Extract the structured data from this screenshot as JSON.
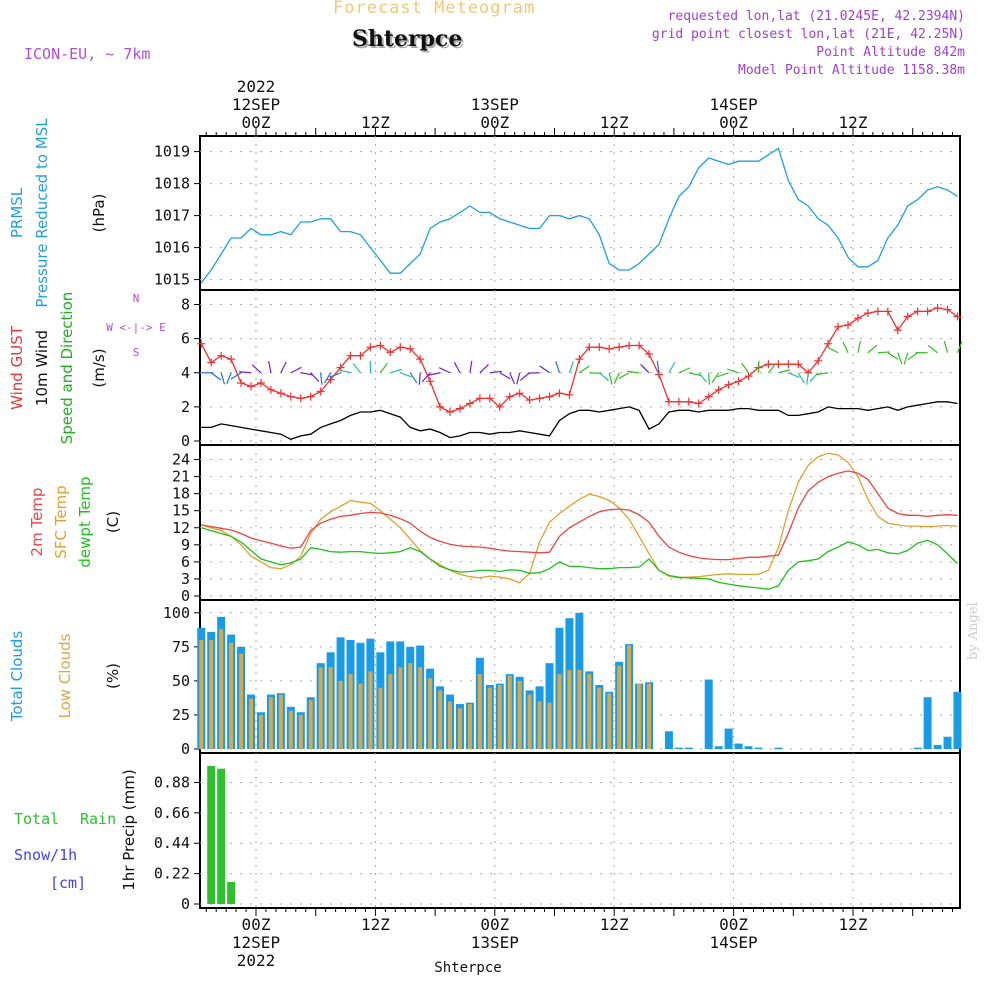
{
  "header": {
    "title": "Forecast Meteogram",
    "location": "Shterpce",
    "model": "ICON-EU, ~ 7km",
    "requested": "requested lon,lat (21.0245E, 42.2394N)",
    "grid_point": "grid point closest lon,lat (21E, 42.25N)",
    "point_altitude": "Point Altitude 842m",
    "model_point_altitude": "Model Point Altitude 1158.38m"
  },
  "footer_location": "Shterpce",
  "credit": "by Angel",
  "colors": {
    "pressure": "#1ea0e0",
    "gust": "#ee3333",
    "wind": "#000000",
    "temp2m": "#ee4444",
    "sfc_temp": "#e0a030",
    "dewpt": "#20c020",
    "total_clouds": "#1a9be6",
    "low_clouds": "#d9a84a",
    "rain": "#2ec02e",
    "snow": "#4040ff",
    "grid": "#aaaaaa"
  },
  "time_axis": {
    "top_year": "2022",
    "labels": [
      {
        "hour": 0,
        "lines": [
          "12SEP",
          "00Z"
        ]
      },
      {
        "hour": 12,
        "lines": [
          "12Z"
        ]
      },
      {
        "hour": 24,
        "lines": [
          "13SEP",
          "00Z"
        ]
      },
      {
        "hour": 36,
        "lines": [
          "12Z"
        ]
      },
      {
        "hour": 48,
        "lines": [
          "14SEP",
          "00Z"
        ]
      },
      {
        "hour": 60,
        "lines": [
          "12Z"
        ]
      }
    ],
    "bottom_labels": [
      {
        "hour": 0,
        "lines": [
          "00Z",
          "12SEP",
          "2022"
        ]
      },
      {
        "hour": 12,
        "lines": [
          "12Z"
        ]
      },
      {
        "hour": 24,
        "lines": [
          "00Z",
          "13SEP"
        ]
      },
      {
        "hour": 36,
        "lines": [
          "12Z"
        ]
      },
      {
        "hour": 48,
        "lines": [
          "00Z",
          "14SEP"
        ]
      },
      {
        "hour": 60,
        "lines": [
          "12Z"
        ]
      }
    ]
  },
  "panel_labels": {
    "pressure": {
      "a": "PRMSL",
      "b": "Pressure Reduced to MSL",
      "unit": "(hPa)"
    },
    "wind": {
      "a": "Wind GUST",
      "b": "10m Wind",
      "c": "Speed and Direction",
      "unit": "(m/s)",
      "compass_ns": "N",
      "compass_we": "W <-|-> E",
      "compass_s": "S"
    },
    "temp": {
      "a": "2m Temp",
      "b": "SFC Temp",
      "c": "dewpt Temp",
      "unit": "(C)"
    },
    "clouds": {
      "a": "Total Clouds",
      "b": "Low Clouds",
      "unit": "(%)"
    },
    "precip": {
      "a": "Total",
      "a2": "Rain",
      "b": "Snow/1h",
      "c": "[cm]",
      "unit": "1hr Precip (mm)"
    }
  },
  "chart_data": [
    {
      "type": "line",
      "name": "pressure",
      "x_unit": "hours from 12SEP 00Z",
      "ylim": [
        1014.8,
        1019.3
      ],
      "yticks": [
        1015,
        1016,
        1017,
        1018,
        1019
      ],
      "x": [
        -5.5,
        -4.5,
        -3.5,
        -2.5,
        -1.5,
        -0.5,
        0.5,
        1.5,
        2.5,
        3.5,
        4.5,
        5.5,
        6.5,
        7.5,
        8.5,
        9.5,
        10.5,
        11.5,
        12.5,
        13.5,
        14.5,
        15.5,
        16.5,
        17.5,
        18.5,
        19.5,
        20.5,
        21.5,
        22.5,
        23.5,
        24.5,
        25.5,
        26.5,
        27.5,
        28.5,
        29.5,
        30.5,
        31.5,
        32.5,
        33.5,
        34.5,
        35.5,
        36.5,
        37.5,
        38.5,
        39.5,
        40.5,
        41.5,
        42.5,
        43.5,
        44.5,
        45.5,
        46.5,
        47.5,
        48.5,
        49.5,
        50.5,
        51.5,
        52.5,
        53.5,
        54.5,
        55.5,
        56.5,
        57.5,
        58.5,
        59.5,
        60.5,
        61.5,
        62.5,
        63.5,
        64.5,
        65.5,
        66.5,
        67.5,
        68.5,
        69.5,
        70.5
      ],
      "values": [
        1014.9,
        1015.3,
        1015.8,
        1016.3,
        1016.3,
        1016.6,
        1016.4,
        1016.4,
        1016.5,
        1016.4,
        1016.8,
        1016.8,
        1016.9,
        1016.9,
        1016.5,
        1016.5,
        1016.4,
        1016.0,
        1015.6,
        1015.2,
        1015.2,
        1015.5,
        1015.8,
        1016.6,
        1016.8,
        1016.9,
        1017.1,
        1017.3,
        1017.1,
        1017.1,
        1016.9,
        1016.8,
        1016.7,
        1016.6,
        1016.6,
        1017.0,
        1017.0,
        1016.9,
        1017.0,
        1016.9,
        1016.4,
        1015.5,
        1015.3,
        1015.3,
        1015.5,
        1015.8,
        1016.1,
        1016.9,
        1017.6,
        1017.9,
        1018.5,
        1018.8,
        1018.7,
        1018.6,
        1018.7,
        1018.7,
        1018.7,
        1018.9,
        1019.1,
        1018.1,
        1017.5,
        1017.3,
        1016.9,
        1016.7,
        1016.3,
        1015.7,
        1015.4,
        1015.4,
        1015.6,
        1016.3,
        1016.7,
        1017.3,
        1017.5,
        1017.8,
        1017.9,
        1017.8,
        1017.6
      ]
    },
    {
      "type": "line",
      "name": "wind",
      "x_unit": "hours from 12SEP 00Z",
      "ylim": [
        0,
        8.5
      ],
      "yticks": [
        0,
        2,
        4,
        6,
        8
      ],
      "x": [
        -5.5,
        -4.5,
        -3.5,
        -2.5,
        -1.5,
        -0.5,
        0.5,
        1.5,
        2.5,
        3.5,
        4.5,
        5.5,
        6.5,
        7.5,
        8.5,
        9.5,
        10.5,
        11.5,
        12.5,
        13.5,
        14.5,
        15.5,
        16.5,
        17.5,
        18.5,
        19.5,
        20.5,
        21.5,
        22.5,
        23.5,
        24.5,
        25.5,
        26.5,
        27.5,
        28.5,
        29.5,
        30.5,
        31.5,
        32.5,
        33.5,
        34.5,
        35.5,
        36.5,
        37.5,
        38.5,
        39.5,
        40.5,
        41.5,
        42.5,
        43.5,
        44.5,
        45.5,
        46.5,
        47.5,
        48.5,
        49.5,
        50.5,
        51.5,
        52.5,
        53.5,
        54.5,
        55.5,
        56.5,
        57.5,
        58.5,
        59.5,
        60.5,
        61.5,
        62.5,
        63.5,
        64.5,
        65.5,
        66.5,
        67.5,
        68.5,
        69.5,
        70.5
      ],
      "gust": [
        5.7,
        4.6,
        5.0,
        4.8,
        3.4,
        3.2,
        3.4,
        3.0,
        2.8,
        2.6,
        2.5,
        2.6,
        2.9,
        3.6,
        4.3,
        5.0,
        5.0,
        5.5,
        5.6,
        5.2,
        5.5,
        5.4,
        4.8,
        3.5,
        2.0,
        1.7,
        1.9,
        2.2,
        2.5,
        2.5,
        2.0,
        2.6,
        2.8,
        2.4,
        2.5,
        2.6,
        2.8,
        2.7,
        4.8,
        5.5,
        5.5,
        5.4,
        5.5,
        5.6,
        5.6,
        5.1,
        3.9,
        2.3,
        2.3,
        2.3,
        2.2,
        2.6,
        3.0,
        3.3,
        3.5,
        3.8,
        4.3,
        4.5,
        4.5,
        4.5,
        4.5,
        4.0,
        4.7,
        5.7,
        6.7,
        6.8,
        7.2,
        7.5,
        7.6,
        7.6,
        6.5,
        7.3,
        7.6,
        7.6,
        7.8,
        7.7,
        7.3
      ],
      "wind": [
        0.8,
        0.8,
        1.0,
        0.9,
        0.8,
        0.7,
        0.6,
        0.5,
        0.4,
        0.1,
        0.3,
        0.4,
        0.8,
        1.0,
        1.2,
        1.5,
        1.7,
        1.7,
        1.8,
        1.6,
        1.4,
        0.8,
        0.6,
        0.7,
        0.5,
        0.2,
        0.3,
        0.5,
        0.5,
        0.4,
        0.5,
        0.5,
        0.6,
        0.5,
        0.4,
        0.3,
        1.2,
        1.6,
        1.8,
        1.8,
        1.7,
        1.8,
        1.9,
        2.0,
        1.8,
        0.7,
        1.0,
        1.7,
        1.8,
        1.8,
        1.7,
        1.8,
        1.8,
        1.8,
        1.9,
        1.9,
        1.8,
        1.8,
        1.8,
        1.5,
        1.5,
        1.6,
        1.7,
        2.0,
        1.9,
        1.9,
        1.9,
        1.8,
        1.9,
        2.0,
        1.8,
        2.0,
        2.1,
        2.2,
        2.3,
        2.3,
        2.2
      ],
      "compass_labels": [
        "N",
        "W <-|-> E",
        "S"
      ]
    },
    {
      "type": "line",
      "name": "temperature",
      "x_unit": "hours from 12SEP 00Z",
      "ylim": [
        0,
        25.5
      ],
      "yticks": [
        0,
        3,
        6,
        9,
        12,
        15,
        18,
        21,
        24
      ],
      "x": [
        -5.5,
        -4.5,
        -3.5,
        -2.5,
        -1.5,
        -0.5,
        0.5,
        1.5,
        2.5,
        3.5,
        4.5,
        5.5,
        6.5,
        7.5,
        8.5,
        9.5,
        10.5,
        11.5,
        12.5,
        13.5,
        14.5,
        15.5,
        16.5,
        17.5,
        18.5,
        19.5,
        20.5,
        21.5,
        22.5,
        23.5,
        24.5,
        25.5,
        26.5,
        27.5,
        28.5,
        29.5,
        30.5,
        31.5,
        32.5,
        33.5,
        34.5,
        35.5,
        36.5,
        37.5,
        38.5,
        39.5,
        40.5,
        41.5,
        42.5,
        43.5,
        44.5,
        45.5,
        46.5,
        47.5,
        48.5,
        49.5,
        50.5,
        51.5,
        52.5,
        53.5,
        54.5,
        55.5,
        56.5,
        57.5,
        58.5,
        59.5,
        60.5,
        61.5,
        62.5,
        63.5,
        64.5,
        65.5,
        66.5,
        67.5,
        68.5,
        69.5,
        70.5
      ],
      "temp2m": [
        12.5,
        12.2,
        11.9,
        11.6,
        11.0,
        10.2,
        9.7,
        9.3,
        8.8,
        8.4,
        8.6,
        11.5,
        12.8,
        13.5,
        14.0,
        14.2,
        14.5,
        14.7,
        14.6,
        14.2,
        13.6,
        12.8,
        11.4,
        10.3,
        9.6,
        9.1,
        8.8,
        8.7,
        8.6,
        8.4,
        8.1,
        7.9,
        7.8,
        7.7,
        7.6,
        7.7,
        10.5,
        12.0,
        13.0,
        14.0,
        14.8,
        15.2,
        15.3,
        15.1,
        14.3,
        13.0,
        10.5,
        8.6,
        7.7,
        7.1,
        6.7,
        6.5,
        6.4,
        6.4,
        6.6,
        6.8,
        6.8,
        7.0,
        7.2,
        11.0,
        15.5,
        18.5,
        20.0,
        21.0,
        21.6,
        22.0,
        21.6,
        20.5,
        18.0,
        15.5,
        14.5,
        14.2,
        14.2,
        14.0,
        14.2,
        14.3,
        14.2
      ],
      "sfc": [
        12.5,
        12.0,
        11.5,
        10.5,
        9.0,
        7.0,
        6.0,
        5.0,
        4.8,
        5.5,
        7.0,
        11.0,
        13.5,
        14.8,
        15.8,
        16.8,
        16.5,
        16.3,
        15.0,
        13.5,
        12.0,
        10.0,
        8.0,
        6.5,
        5.5,
        4.5,
        3.8,
        3.4,
        3.2,
        3.5,
        3.3,
        3.0,
        2.3,
        4.0,
        9.5,
        13.0,
        14.5,
        15.8,
        17.0,
        17.9,
        17.5,
        16.8,
        15.5,
        13.5,
        10.5,
        7.5,
        4.5,
        3.5,
        3.2,
        3.3,
        3.4,
        3.6,
        3.8,
        3.9,
        3.8,
        3.8,
        3.8,
        4.5,
        8.5,
        15.0,
        20.0,
        23.0,
        24.5,
        25.1,
        24.8,
        23.5,
        21.0,
        17.0,
        14.0,
        12.8,
        12.5,
        12.3,
        12.3,
        12.2,
        12.3,
        12.4,
        12.3
      ],
      "dewpt": [
        12.0,
        11.5,
        11.0,
        10.5,
        9.5,
        8.0,
        6.5,
        6.0,
        5.5,
        5.8,
        6.5,
        8.5,
        8.2,
        7.8,
        7.7,
        7.8,
        7.8,
        7.6,
        7.5,
        7.6,
        7.8,
        8.5,
        7.8,
        6.5,
        5.2,
        4.6,
        4.2,
        4.3,
        4.5,
        4.5,
        4.3,
        4.6,
        4.5,
        4.0,
        4.1,
        4.8,
        6.0,
        5.2,
        5.2,
        5.0,
        4.8,
        4.8,
        5.0,
        5.0,
        5.1,
        6.5,
        4.5,
        3.6,
        3.3,
        3.2,
        3.1,
        3.0,
        2.4,
        2.1,
        1.8,
        1.6,
        1.4,
        1.2,
        1.8,
        4.5,
        6.0,
        6.2,
        6.5,
        7.8,
        8.6,
        9.5,
        9.0,
        8.0,
        8.2,
        7.6,
        7.4,
        8.0,
        9.3,
        9.8,
        9.0,
        7.4,
        5.7
      ]
    },
    {
      "type": "bar",
      "name": "clouds",
      "x_unit": "hours from 12SEP 00Z",
      "ylim": [
        0,
        105
      ],
      "yticks": [
        0,
        25,
        50,
        75,
        100
      ],
      "x": [
        -5.5,
        -4.5,
        -3.5,
        -2.5,
        -1.5,
        -0.5,
        0.5,
        1.5,
        2.5,
        3.5,
        4.5,
        5.5,
        6.5,
        7.5,
        8.5,
        9.5,
        10.5,
        11.5,
        12.5,
        13.5,
        14.5,
        15.5,
        16.5,
        17.5,
        18.5,
        19.5,
        20.5,
        21.5,
        22.5,
        23.5,
        24.5,
        25.5,
        26.5,
        27.5,
        28.5,
        29.5,
        30.5,
        31.5,
        32.5,
        33.5,
        34.5,
        35.5,
        36.5,
        37.5,
        38.5,
        39.5,
        40.5,
        41.5,
        42.5,
        43.5,
        44.5,
        45.5,
        46.5,
        47.5,
        48.5,
        49.5,
        50.5,
        51.5,
        52.5,
        53.5,
        54.5,
        55.5,
        56.5,
        57.5,
        58.5,
        59.5,
        60.5,
        61.5,
        62.5,
        63.5,
        64.5,
        65.5,
        66.5,
        67.5,
        68.5,
        69.5,
        70.5
      ],
      "total": [
        89,
        86,
        97,
        84,
        75,
        40,
        27,
        40,
        41,
        31,
        27,
        38,
        63,
        71,
        82,
        80,
        78,
        81,
        71,
        79,
        79,
        75,
        76,
        59,
        46,
        40,
        33,
        34,
        67,
        47,
        48,
        55,
        53,
        43,
        46,
        63,
        89,
        96,
        100,
        57,
        47,
        42,
        64,
        77,
        48,
        49,
        0,
        13,
        1,
        1,
        0,
        51,
        2,
        15,
        4,
        2,
        1,
        0,
        1,
        0,
        0,
        0,
        0,
        0,
        0,
        0,
        0,
        0,
        0,
        0,
        0,
        0,
        1,
        38,
        3,
        9,
        42
      ],
      "low": [
        80,
        80,
        88,
        78,
        70,
        37,
        25,
        38,
        40,
        28,
        25,
        36,
        60,
        60,
        50,
        55,
        48,
        57,
        45,
        55,
        60,
        63,
        60,
        52,
        43,
        35,
        30,
        33,
        55,
        45,
        47,
        54,
        50,
        40,
        35,
        34,
        55,
        58,
        58,
        55,
        45,
        41,
        61,
        76,
        48,
        48,
        0,
        0,
        0,
        0,
        0,
        0,
        0,
        0,
        0,
        0,
        0,
        0,
        0,
        0,
        0,
        0,
        0,
        0,
        0,
        0,
        0,
        0,
        0,
        0,
        0,
        0,
        0,
        0,
        0,
        0,
        0
      ]
    },
    {
      "type": "bar",
      "name": "precipitation",
      "x_unit": "hours from 12SEP 00Z",
      "ylim": [
        0,
        1.05
      ],
      "yticks": [
        0,
        0.22,
        0.44,
        0.66,
        0.88
      ],
      "x": [
        -4.5,
        -3.5,
        -2.5
      ],
      "rain": [
        1.0,
        0.98,
        0.16
      ],
      "snow": [
        0,
        0,
        0
      ]
    }
  ]
}
